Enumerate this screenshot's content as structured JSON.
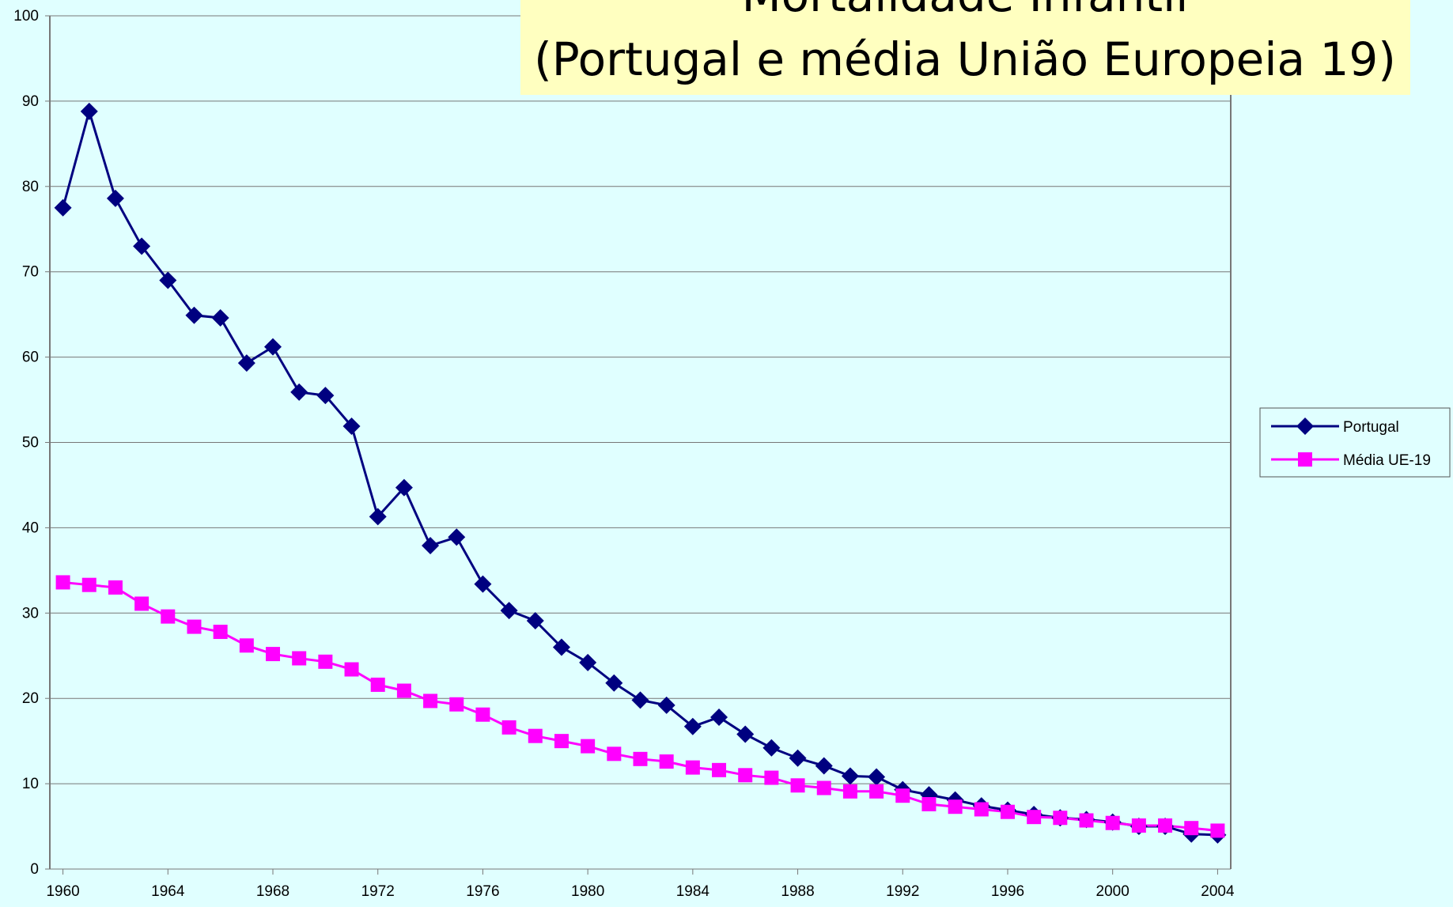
{
  "chart_data": {
    "type": "line",
    "title": "Mortalidade Infantil",
    "subtitle": "(Portugal e média União Europeia 19)",
    "x": [
      1960,
      1961,
      1962,
      1963,
      1964,
      1965,
      1966,
      1967,
      1968,
      1969,
      1970,
      1971,
      1972,
      1973,
      1974,
      1975,
      1976,
      1977,
      1978,
      1979,
      1980,
      1981,
      1982,
      1983,
      1984,
      1985,
      1986,
      1987,
      1988,
      1989,
      1990,
      1991,
      1992,
      1993,
      1994,
      1995,
      1996,
      1997,
      1998,
      1999,
      2000,
      2001,
      2002,
      2003,
      2004
    ],
    "series": [
      {
        "name": "Portugal",
        "color": "#000080",
        "marker": "diamond",
        "values": [
          77.5,
          88.8,
          78.6,
          73,
          69,
          64.9,
          64.6,
          59.3,
          61.2,
          55.9,
          55.5,
          51.9,
          41.3,
          44.7,
          37.9,
          38.9,
          33.4,
          30.3,
          29.1,
          26.0,
          24.2,
          21.8,
          19.8,
          19.2,
          16.7,
          17.8,
          15.8,
          14.2,
          13.0,
          12.1,
          10.9,
          10.8,
          9.3,
          8.7,
          8.1,
          7.4,
          6.9,
          6.4,
          6.0,
          5.8,
          5.5,
          5.0,
          5.0,
          4.1,
          4.0
        ]
      },
      {
        "name": "Média UE-19",
        "color": "#ff00ff",
        "marker": "square",
        "values": [
          33.6,
          33.3,
          33.0,
          31.1,
          29.6,
          28.4,
          27.8,
          26.2,
          25.2,
          24.7,
          24.3,
          23.4,
          21.6,
          20.9,
          19.7,
          19.3,
          18.1,
          16.6,
          15.6,
          15.0,
          14.4,
          13.5,
          12.9,
          12.6,
          11.9,
          11.6,
          11.0,
          10.7,
          9.8,
          9.5,
          9.1,
          9.1,
          8.6,
          7.6,
          7.3,
          7.0,
          6.7,
          6.1,
          6.0,
          5.7,
          5.4,
          5.1,
          5.1,
          4.8,
          4.5
        ]
      }
    ],
    "xlim": [
      1959.5,
      2004.5
    ],
    "xticks": [
      1960,
      1964,
      1968,
      1972,
      1976,
      1980,
      1984,
      1988,
      1992,
      1996,
      2000,
      2004
    ],
    "ylim": [
      0,
      100
    ],
    "yticks": [
      0,
      10,
      20,
      30,
      40,
      50,
      60,
      70,
      80,
      90,
      100
    ],
    "grid": true,
    "legend": "right"
  }
}
